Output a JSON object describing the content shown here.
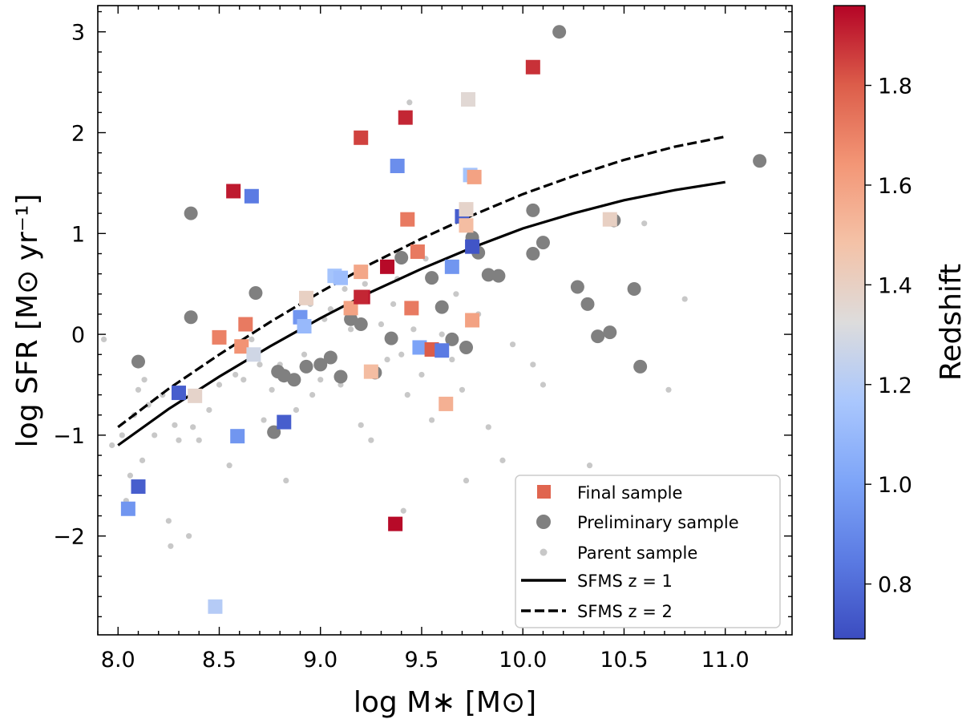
{
  "chart_data": {
    "type": "scatter",
    "xlabel": "log M∗ [M⊙]",
    "ylabel": "log SFR [M⊙ yr⁻¹]",
    "xlim": [
      7.9,
      11.33
    ],
    "ylim": [
      -2.98,
      3.26
    ],
    "xticks": [
      8.0,
      8.5,
      9.0,
      9.5,
      10.0,
      10.5,
      11.0
    ],
    "xtick_labels": [
      "8.0",
      "8.5",
      "9.0",
      "9.5",
      "10.0",
      "10.5",
      "11.0"
    ],
    "yticks": [
      -2,
      -1,
      0,
      1,
      2,
      3
    ],
    "ytick_labels": [
      "−2",
      "−1",
      "0",
      "1",
      "2",
      "3"
    ],
    "grid": false,
    "colorbar": {
      "label": "Redshift",
      "range": [
        0.69,
        1.96
      ],
      "ticks": [
        0.8,
        1.0,
        1.2,
        1.4,
        1.6,
        1.8
      ],
      "tick_labels": [
        "0.8",
        "1.0",
        "1.2",
        "1.4",
        "1.6",
        "1.8"
      ],
      "colormap": "coolwarm"
    },
    "legend": {
      "position": "lower-right",
      "entries": [
        {
          "label": "Final sample",
          "marker": "square",
          "color": "#e0654f"
        },
        {
          "label": "Preliminary sample",
          "marker": "circle",
          "color": "#808080"
        },
        {
          "label": "Parent sample",
          "marker": "small-circle",
          "color": "#c8c8c8"
        },
        {
          "label": "SFMS z = 1",
          "marker": "solid-line",
          "color": "#000000"
        },
        {
          "label": "SFMS z = 2",
          "marker": "dashed-line",
          "color": "#000000"
        }
      ]
    },
    "series": [
      {
        "name": "SFMS z = 1",
        "style": "solid",
        "x": [
          8.0,
          8.25,
          8.5,
          8.75,
          9.0,
          9.25,
          9.5,
          9.75,
          10.0,
          10.25,
          10.5,
          10.75,
          11.0
        ],
        "y": [
          -1.1,
          -0.74,
          -0.42,
          -0.12,
          0.16,
          0.42,
          0.65,
          0.86,
          1.05,
          1.2,
          1.33,
          1.43,
          1.51
        ]
      },
      {
        "name": "SFMS z = 2",
        "style": "dashed",
        "x": [
          8.0,
          8.25,
          8.5,
          8.75,
          9.0,
          9.25,
          9.5,
          9.75,
          10.0,
          10.25,
          10.5,
          10.75,
          11.0
        ],
        "y": [
          -0.92,
          -0.54,
          -0.2,
          0.12,
          0.42,
          0.7,
          0.95,
          1.18,
          1.39,
          1.57,
          1.73,
          1.86,
          1.96
        ]
      },
      {
        "name": "Parent sample",
        "marker": "small-circle",
        "x": [
          7.93,
          7.97,
          8.02,
          8.06,
          8.08,
          8.1,
          8.12,
          8.15,
          8.18,
          8.22,
          8.25,
          8.28,
          8.3,
          8.33,
          8.37,
          8.4,
          8.45,
          8.5,
          8.55,
          8.58,
          8.62,
          8.66,
          8.7,
          8.72,
          8.76,
          8.8,
          8.83,
          8.88,
          8.92,
          8.96,
          9.0,
          9.05,
          9.1,
          9.15,
          9.2,
          9.25,
          9.3,
          9.36,
          9.4,
          9.43,
          9.46,
          9.5,
          9.55,
          9.6,
          9.65,
          9.7,
          9.72,
          9.78,
          9.83,
          9.9,
          9.95,
          10.05,
          10.1,
          10.6,
          10.72,
          10.8,
          8.04,
          8.13,
          8.35,
          8.26,
          9.38,
          9.41,
          9.44,
          9.02,
          9.12,
          9.22,
          8.95,
          9.33,
          9.52,
          9.67,
          10.33
        ],
        "y": [
          -0.05,
          -1.1,
          -1.0,
          -1.4,
          -0.8,
          -0.55,
          -1.25,
          -0.7,
          -1.0,
          -0.6,
          -1.85,
          -0.9,
          -1.05,
          -0.62,
          -0.92,
          -1.05,
          -0.75,
          -0.5,
          -1.3,
          -0.4,
          -0.45,
          -0.05,
          -0.3,
          -0.85,
          -0.55,
          -0.3,
          -1.45,
          -0.75,
          -0.2,
          -0.6,
          -0.45,
          0.25,
          -0.5,
          0.05,
          -0.9,
          -1.05,
          0.1,
          0.3,
          -0.2,
          -0.6,
          0.05,
          -0.4,
          -0.85,
          0.0,
          -0.25,
          -0.55,
          -1.45,
          0.2,
          -0.92,
          -1.25,
          -0.1,
          -0.3,
          -0.5,
          1.1,
          -0.55,
          0.35,
          -1.65,
          -0.45,
          -2.0,
          -2.1,
          0.55,
          -1.75,
          2.3,
          0.15,
          0.45,
          0.5,
          0.3,
          -0.25,
          0.75,
          0.4,
          -1.3
        ]
      },
      {
        "name": "Preliminary sample",
        "marker": "circle",
        "x": [
          8.1,
          8.36,
          8.36,
          8.68,
          8.77,
          8.79,
          8.82,
          8.87,
          8.93,
          9.0,
          9.05,
          9.1,
          9.15,
          9.2,
          9.27,
          9.35,
          9.4,
          9.55,
          9.6,
          9.65,
          9.72,
          9.75,
          9.78,
          9.83,
          9.88,
          10.05,
          10.05,
          10.1,
          10.18,
          10.27,
          10.32,
          10.37,
          10.43,
          10.45,
          10.55,
          10.58,
          11.17
        ],
        "y": [
          -0.27,
          0.17,
          1.2,
          0.41,
          -0.97,
          -0.37,
          -0.41,
          -0.45,
          -0.32,
          -0.3,
          -0.23,
          -0.42,
          0.15,
          0.1,
          -0.38,
          -0.04,
          0.76,
          0.56,
          0.27,
          -0.05,
          -0.13,
          0.96,
          0.81,
          0.59,
          0.58,
          0.8,
          1.23,
          0.91,
          3.0,
          0.47,
          0.3,
          -0.02,
          0.02,
          1.13,
          0.45,
          -0.32,
          1.72
        ]
      },
      {
        "name": "Final sample",
        "marker": "square",
        "x": [
          8.05,
          8.1,
          8.3,
          8.38,
          8.48,
          8.5,
          8.57,
          8.59,
          8.61,
          8.63,
          8.66,
          8.67,
          8.82,
          8.9,
          8.92,
          8.93,
          9.07,
          9.1,
          9.15,
          9.2,
          9.2,
          9.21,
          9.2,
          9.25,
          9.33,
          9.37,
          9.38,
          9.42,
          9.43,
          9.45,
          9.48,
          9.49,
          9.55,
          9.6,
          9.62,
          9.65,
          9.7,
          9.73,
          9.72,
          9.74,
          9.75,
          9.72,
          9.76,
          9.75,
          10.05,
          10.43
        ],
        "y": [
          -1.73,
          -1.51,
          -0.58,
          -0.61,
          -2.7,
          -0.03,
          1.42,
          -1.01,
          -0.12,
          0.1,
          1.37,
          -0.2,
          -0.87,
          0.17,
          0.08,
          0.36,
          0.58,
          0.56,
          0.26,
          1.95,
          0.62,
          0.37,
          0.37,
          -0.37,
          0.67,
          -1.88,
          1.67,
          2.15,
          1.14,
          0.26,
          0.82,
          -0.13,
          -0.15,
          -0.16,
          -0.69,
          0.67,
          1.17,
          2.33,
          1.08,
          1.58,
          0.87,
          1.24,
          1.56,
          0.14,
          2.65,
          1.14
        ],
        "z": [
          0.95,
          0.75,
          0.75,
          1.38,
          1.2,
          1.7,
          1.92,
          0.95,
          1.65,
          1.72,
          0.85,
          1.28,
          0.75,
          0.95,
          1.1,
          1.4,
          1.15,
          1.12,
          1.6,
          1.85,
          1.58,
          1.92,
          1.9,
          1.5,
          1.95,
          1.95,
          0.92,
          1.9,
          1.72,
          1.72,
          1.72,
          1.0,
          1.8,
          0.85,
          1.55,
          0.95,
          0.75,
          1.35,
          1.5,
          1.15,
          0.72,
          1.38,
          1.6,
          1.6,
          1.88,
          1.4
        ]
      }
    ]
  }
}
